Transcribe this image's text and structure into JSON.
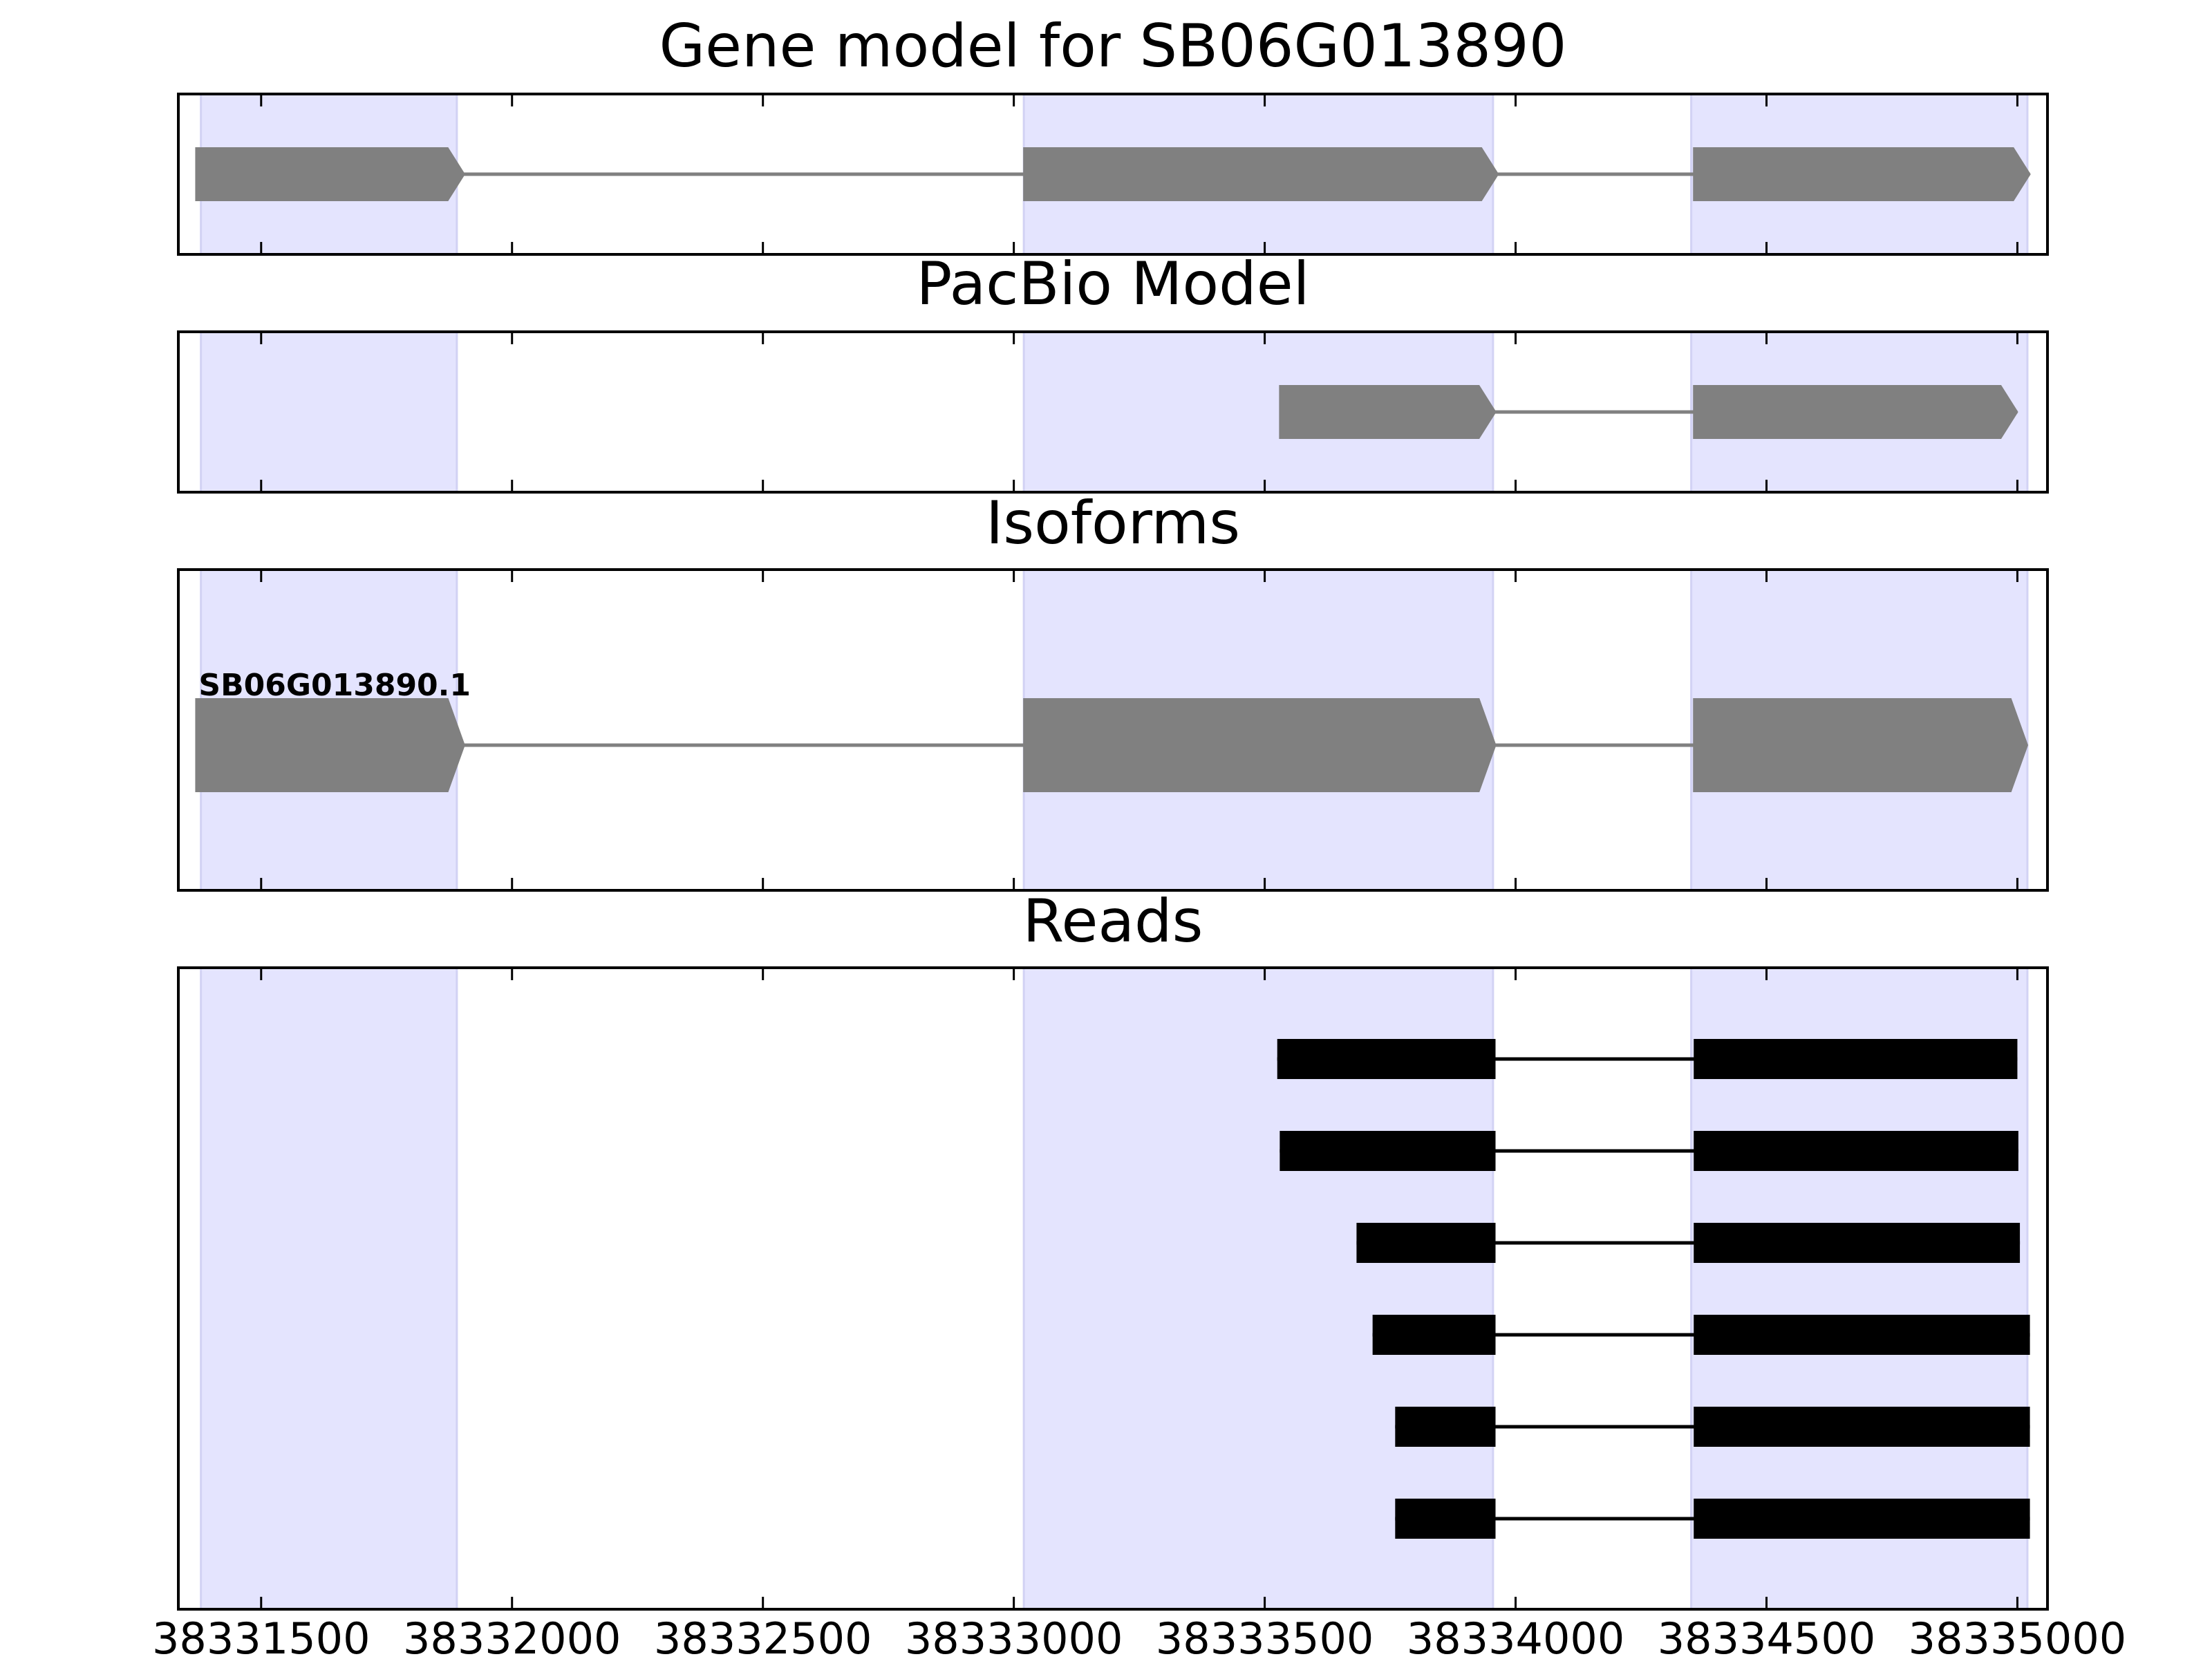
{
  "chart_data": {
    "type": "gene-structure",
    "xlim": [
      38331335,
      38335060
    ],
    "x_ticks": [
      38331500,
      38332000,
      38332500,
      38333000,
      38333500,
      38334000,
      38334500,
      38335000
    ],
    "x_tick_labels": [
      "38331500",
      "38332000",
      "38332500",
      "38333000",
      "38333500",
      "38334000",
      "38334500",
      "38335000"
    ],
    "shaded_regions": [
      [
        38331380,
        38331890
      ],
      [
        38333020,
        38333955
      ],
      [
        38334350,
        38335020
      ]
    ],
    "panels": [
      {
        "title": "Gene model for SB06G013890",
        "tracks": [
          {
            "label": "",
            "exons": [
              [
                38331370,
                38331905
              ],
              [
                38333020,
                38333965
              ],
              [
                38334355,
                38335025
              ]
            ]
          }
        ]
      },
      {
        "title": "PacBio Model",
        "tracks": [
          {
            "label": "",
            "exons": [
              [
                38333530,
                38333960
              ],
              [
                38334355,
                38335000
              ]
            ]
          }
        ]
      },
      {
        "title": "Isoforms",
        "tracks": [
          {
            "label": "SB06G013890.1",
            "exons": [
              [
                38331370,
                38331905
              ],
              [
                38333020,
                38333960
              ],
              [
                38334355,
                38335020
              ]
            ]
          }
        ]
      },
      {
        "title": "Reads",
        "tracks": [
          {
            "label": "",
            "exons": [
              [
                38333525,
                38333960
              ],
              [
                38334355,
                38335000
              ]
            ]
          },
          {
            "label": "",
            "exons": [
              [
                38333530,
                38333960
              ],
              [
                38334355,
                38335002
              ]
            ]
          },
          {
            "label": "",
            "exons": [
              [
                38333683,
                38333960
              ],
              [
                38334355,
                38335005
              ]
            ]
          },
          {
            "label": "",
            "exons": [
              [
                38333715,
                38333960
              ],
              [
                38334355,
                38335025
              ]
            ]
          },
          {
            "label": "",
            "exons": [
              [
                38333760,
                38333960
              ],
              [
                38334355,
                38335025
              ]
            ]
          },
          {
            "label": "",
            "exons": [
              [
                38333760,
                38333960
              ],
              [
                38334355,
                38335025
              ]
            ]
          }
        ]
      }
    ]
  }
}
